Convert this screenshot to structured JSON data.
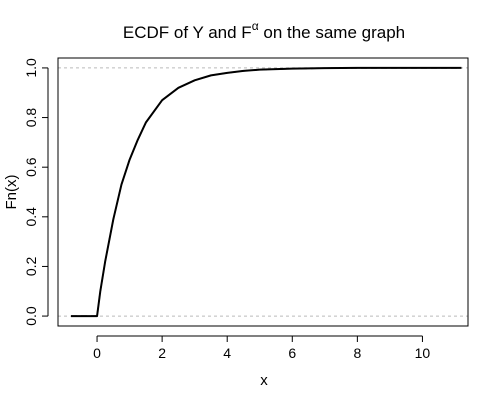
{
  "chart_data": {
    "type": "line",
    "title_main": "ECDF of Y and F",
    "title_superscript": "α",
    "title_end": " on the same graph",
    "xlabel": "x",
    "ylabel": "Fn(x)",
    "xlim": [
      -1.2,
      11.4
    ],
    "ylim": [
      -0.04,
      1.04
    ],
    "x_ticks": [
      0,
      2,
      4,
      6,
      8,
      10
    ],
    "y_ticks": [
      0.0,
      0.2,
      0.4,
      0.6,
      0.8,
      1.0
    ],
    "x_tick_labels": [
      "0",
      "2",
      "4",
      "6",
      "8",
      "10"
    ],
    "y_tick_labels": [
      "0.0",
      "0.2",
      "0.4",
      "0.6",
      "0.8",
      "1.0"
    ],
    "reference_lines_y": [
      0,
      1
    ],
    "series": [
      {
        "style": "solid",
        "x": [
          -0.8,
          0.0,
          0.1,
          0.25,
          0.5,
          0.75,
          1.0,
          1.25,
          1.5,
          2.0,
          2.5,
          3.0,
          3.5,
          4.0,
          4.5,
          5.0,
          6.0,
          7.0,
          8.0,
          9.0,
          10.0,
          11.2
        ],
        "y": [
          0.0,
          0.0,
          0.1,
          0.22,
          0.39,
          0.53,
          0.63,
          0.71,
          0.78,
          0.87,
          0.92,
          0.95,
          0.97,
          0.98,
          0.988,
          0.993,
          0.997,
          0.999,
          1.0,
          1.0,
          1.0,
          1.0
        ]
      },
      {
        "style": "dashed",
        "x": [
          -0.8,
          0.0,
          0.1,
          0.25,
          0.5,
          0.75,
          1.0,
          1.25,
          1.5,
          2.0,
          2.5,
          3.0,
          3.5,
          4.0,
          4.5,
          5.0,
          6.0,
          7.0,
          8.0,
          9.0,
          10.0,
          11.2
        ],
        "y": [
          0.0,
          0.0,
          0.1,
          0.22,
          0.39,
          0.53,
          0.63,
          0.71,
          0.78,
          0.87,
          0.92,
          0.95,
          0.97,
          0.98,
          0.988,
          0.993,
          0.997,
          0.999,
          1.0,
          1.0,
          1.0,
          1.0
        ]
      }
    ],
    "grid": false,
    "colors": {
      "line": "#000000",
      "reference": "#bbbbbb",
      "axis": "#000000"
    }
  }
}
